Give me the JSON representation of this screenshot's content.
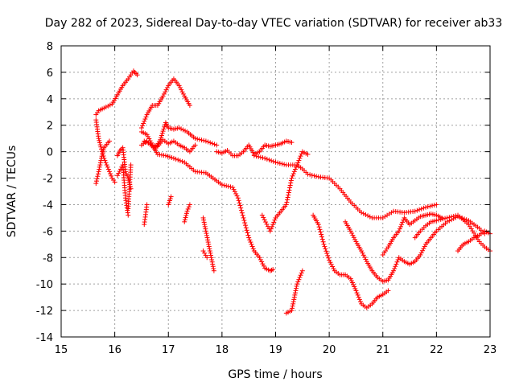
{
  "chart_data": {
    "type": "scatter",
    "title": "Day 282 of 2023, Sidereal Day-to-day VTEC variation (SDTVAR) for receiver ab33",
    "xlabel": "GPS time / hours",
    "ylabel": "SDTVAR / TECUs",
    "xlim": [
      15,
      23
    ],
    "ylim": [
      -14,
      8
    ],
    "xticks": [
      15,
      16,
      17,
      18,
      19,
      20,
      21,
      22,
      23
    ],
    "yticks": [
      -14,
      -12,
      -10,
      -8,
      -6,
      -4,
      -2,
      0,
      2,
      4,
      6,
      8
    ],
    "grid": true,
    "marker": "+",
    "color": "#ff0000",
    "series": [
      {
        "x": [
          15.65,
          15.7,
          15.8,
          15.95,
          16.05,
          16.15,
          16.25,
          16.35,
          16.42
        ],
        "y": [
          2.8,
          3.1,
          3.3,
          3.6,
          4.3,
          5.0,
          5.5,
          6.1,
          5.8
        ]
      },
      {
        "x": [
          15.65,
          15.7,
          15.75,
          15.8,
          15.85,
          15.9,
          15.95,
          16.0
        ],
        "y": [
          2.4,
          1.0,
          0.2,
          -0.5,
          -1.0,
          -1.5,
          -2.0,
          -2.3
        ]
      },
      {
        "x": [
          15.65,
          15.7,
          15.75,
          15.8,
          15.9
        ],
        "y": [
          -2.4,
          -1.5,
          -0.5,
          0.3,
          0.8
        ]
      },
      {
        "x": [
          16.05,
          16.1,
          16.15,
          16.2,
          16.25,
          16.3
        ],
        "y": [
          -0.3,
          0.1,
          0.3,
          -1.5,
          -2.0,
          -2.8
        ]
      },
      {
        "x": [
          16.05,
          16.15,
          16.2,
          16.25
        ],
        "y": [
          -1.8,
          -1.0,
          -3.5,
          -4.8
        ]
      },
      {
        "x": [
          16.25,
          16.3
        ],
        "y": [
          -4.3,
          -1.0
        ]
      },
      {
        "x": [
          16.5,
          16.6,
          16.7,
          16.8,
          16.9,
          17.0,
          17.1,
          17.2,
          17.3,
          17.4
        ],
        "y": [
          1.8,
          2.8,
          3.5,
          3.5,
          4.2,
          5.0,
          5.5,
          5.0,
          4.2,
          3.5
        ]
      },
      {
        "x": [
          16.5,
          16.6,
          16.75,
          16.85,
          16.95,
          17.0,
          17.1,
          17.2,
          17.35,
          17.5,
          17.7,
          17.9
        ],
        "y": [
          0.5,
          0.8,
          0.2,
          0.9,
          2.2,
          1.8,
          1.7,
          1.8,
          1.5,
          1.0,
          0.8,
          0.5
        ]
      },
      {
        "x": [
          16.5,
          16.6,
          16.7,
          16.8,
          16.9,
          17.0,
          17.1,
          17.2,
          17.3,
          17.4,
          17.5
        ],
        "y": [
          1.5,
          1.3,
          0.5,
          0.4,
          0.9,
          0.6,
          0.8,
          0.5,
          0.3,
          0.0,
          0.5
        ]
      },
      {
        "x": [
          16.55,
          16.7,
          16.8,
          16.95,
          17.1,
          17.3,
          17.5,
          17.7,
          17.9,
          18.0,
          18.2,
          18.3,
          18.4,
          18.5,
          18.6,
          18.7,
          18.8,
          18.9,
          18.95
        ],
        "y": [
          0.8,
          0.5,
          -0.2,
          -0.3,
          -0.5,
          -0.8,
          -1.5,
          -1.6,
          -2.2,
          -2.5,
          -2.7,
          -3.5,
          -5.0,
          -6.5,
          -7.5,
          -8.0,
          -8.8,
          -9.0,
          -8.9
        ]
      },
      {
        "x": [
          17.9,
          18.0,
          18.1,
          18.2,
          18.3,
          18.4,
          18.5,
          18.6,
          18.7,
          18.8,
          18.9,
          19.0,
          19.1,
          19.2,
          19.3
        ],
        "y": [
          0.0,
          -0.1,
          0.1,
          -0.3,
          -0.3,
          0.0,
          0.5,
          -0.2,
          0.0,
          0.5,
          0.4,
          0.5,
          0.6,
          0.8,
          0.7
        ]
      },
      {
        "x": [
          18.6,
          18.8,
          19.0,
          19.2,
          19.4,
          19.5,
          19.6,
          19.8,
          20.0,
          20.2,
          20.4,
          20.6,
          20.8,
          21.0,
          21.2,
          21.4,
          21.6,
          21.8,
          22.0
        ],
        "y": [
          -0.3,
          -0.5,
          -0.8,
          -1.0,
          -1.0,
          -1.3,
          -1.7,
          -1.9,
          -2.0,
          -2.8,
          -3.8,
          -4.6,
          -5.0,
          -5.0,
          -4.5,
          -4.6,
          -4.5,
          -4.2,
          -4.0
        ]
      },
      {
        "x": [
          18.75,
          18.9,
          19.0,
          19.1,
          19.2,
          19.3,
          19.4,
          19.5,
          19.6
        ],
        "y": [
          -4.8,
          -6.0,
          -5.0,
          -4.5,
          -4.0,
          -2.0,
          -1.0,
          0.0,
          -0.2
        ]
      },
      {
        "x": [
          19.2,
          19.3,
          19.35,
          19.4,
          19.5
        ],
        "y": [
          -12.2,
          -12.0,
          -11.0,
          -10.0,
          -9.0
        ]
      },
      {
        "x": [
          19.7,
          19.8,
          19.9,
          20.0,
          20.1,
          20.2,
          20.3,
          20.4,
          20.5,
          20.6,
          20.7,
          20.8,
          20.9,
          21.0,
          21.1
        ],
        "y": [
          -4.8,
          -5.5,
          -7.0,
          -8.2,
          -9.0,
          -9.3,
          -9.3,
          -9.6,
          -10.5,
          -11.5,
          -11.8,
          -11.5,
          -11.0,
          -10.8,
          -10.5
        ]
      },
      {
        "x": [
          20.3,
          20.4,
          20.5,
          20.6,
          20.7,
          20.8,
          20.9,
          21.0,
          21.1,
          21.2,
          21.3,
          21.4,
          21.5,
          21.6,
          21.7,
          21.8,
          21.9,
          22.0,
          22.2,
          22.4,
          22.6,
          22.8,
          22.9
        ],
        "y": [
          -5.3,
          -6.0,
          -6.8,
          -7.5,
          -8.3,
          -9.0,
          -9.5,
          -9.8,
          -9.7,
          -9.0,
          -8.0,
          -8.3,
          -8.5,
          -8.3,
          -7.8,
          -7.0,
          -6.5,
          -6.0,
          -5.3,
          -4.9,
          -5.2,
          -5.8,
          -6.2
        ]
      },
      {
        "x": [
          21.0,
          21.1,
          21.2,
          21.3,
          21.4,
          21.5,
          21.6,
          21.7,
          21.8,
          21.9,
          22.0,
          22.1
        ],
        "y": [
          -7.8,
          -7.2,
          -6.5,
          -6.0,
          -5.0,
          -5.5,
          -5.2,
          -4.9,
          -4.8,
          -4.7,
          -4.8,
          -5.0
        ]
      },
      {
        "x": [
          21.6,
          21.7,
          21.8,
          21.9,
          22.0,
          22.2,
          22.4,
          22.6,
          22.8,
          22.9,
          23.0
        ],
        "y": [
          -6.5,
          -6.0,
          -5.6,
          -5.3,
          -5.2,
          -5.0,
          -4.8,
          -5.5,
          -6.8,
          -7.2,
          -7.5
        ]
      },
      {
        "x": [
          22.4,
          22.5,
          22.6,
          22.7,
          22.8,
          22.9,
          23.0
        ],
        "y": [
          -7.5,
          -7.0,
          -6.8,
          -6.5,
          -6.3,
          -6.0,
          -6.2
        ]
      },
      {
        "x": [
          16.55,
          16.6
        ],
        "y": [
          -5.5,
          -4.0
        ]
      },
      {
        "x": [
          17.0,
          17.05
        ],
        "y": [
          -4.0,
          -3.4
        ]
      },
      {
        "x": [
          17.3,
          17.35,
          17.4
        ],
        "y": [
          -5.3,
          -4.5,
          -4.0
        ]
      },
      {
        "x": [
          17.65,
          17.7,
          17.75,
          17.8,
          17.85
        ],
        "y": [
          -5.0,
          -6.0,
          -7.0,
          -8.0,
          -9.0
        ]
      },
      {
        "x": [
          17.65,
          17.72
        ],
        "y": [
          -7.5,
          -8.0
        ]
      }
    ]
  }
}
